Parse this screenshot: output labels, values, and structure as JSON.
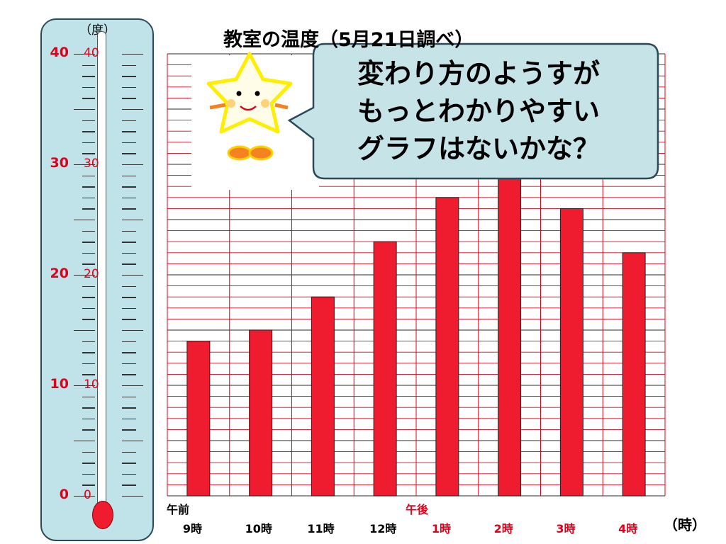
{
  "chart_data": {
    "type": "bar",
    "title": "教室の温度（5月21日調べ）",
    "categories": [
      "9時",
      "10時",
      "11時",
      "12時",
      "1時",
      "2時",
      "3時",
      "4時"
    ],
    "values": [
      14,
      15,
      18,
      23,
      27,
      29,
      26,
      22
    ],
    "ylim": [
      0,
      40
    ],
    "y_unit": "（度）",
    "x_unit": "（時）",
    "period_labels": {
      "am": "午前",
      "pm": "午後"
    },
    "bar_color": "#ee1c2e",
    "grid_color": "#e0001a",
    "grid": true
  },
  "thermometer": {
    "unit": "（度）",
    "labels": [
      "40",
      "30",
      "20",
      "10",
      "0"
    ],
    "label_values": [
      40,
      30,
      20,
      10,
      0
    ],
    "frame_color": "#bfe3e8"
  },
  "callout": {
    "lines": [
      "変わり方のようすが",
      "もっとわかりやすい",
      "グラフはないかな？"
    ],
    "fill": "#c6e3e8"
  },
  "mascot": {
    "name": "star-mascot-icon"
  }
}
